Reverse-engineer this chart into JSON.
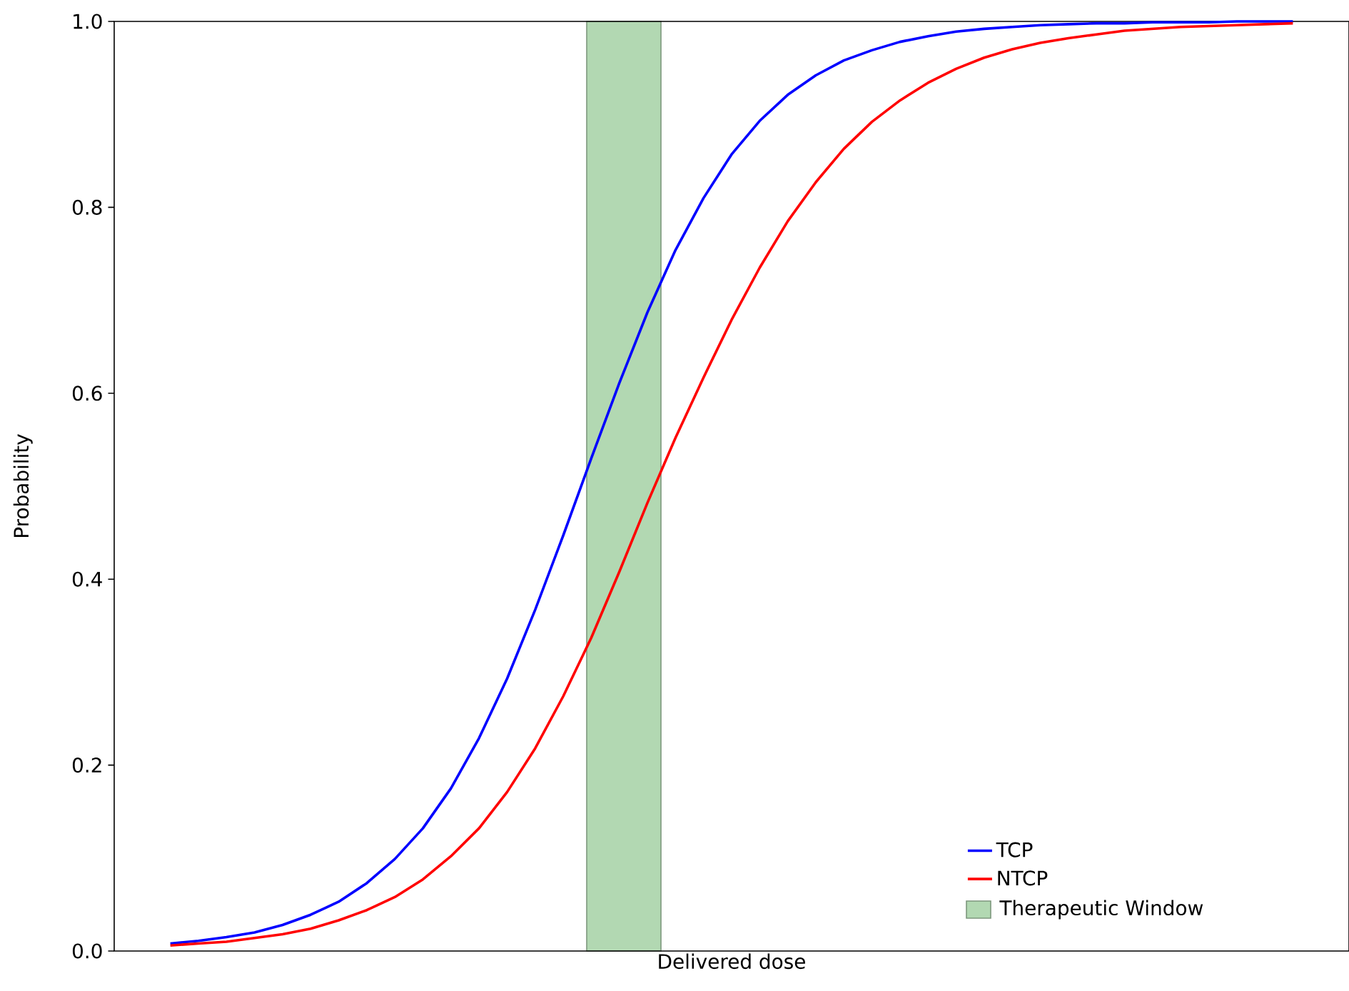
{
  "chart_data": {
    "type": "line",
    "xlabel": "Delivered dose",
    "ylabel": "Probability",
    "categories": [
      null,
      null,
      null,
      null,
      null,
      null,
      null,
      null,
      null,
      null,
      null,
      null,
      null,
      null,
      null,
      null,
      null,
      null,
      null,
      null,
      null,
      null,
      null,
      null,
      null,
      null,
      null,
      null,
      null,
      null,
      null,
      null,
      null,
      null,
      null,
      null,
      null,
      null,
      null,
      null,
      null
    ],
    "ylim": [
      0,
      1
    ],
    "yticks": [
      {
        "value": 0,
        "label": "0.0"
      },
      {
        "value": 0.2,
        "label": "0.2"
      },
      {
        "value": 0.4,
        "label": "0.4"
      },
      {
        "value": 0.6,
        "label": "0.6"
      },
      {
        "value": 0.8,
        "label": "0.8"
      },
      {
        "value": 1,
        "label": "1.0"
      }
    ],
    "legend": "bottom right",
    "marker": "none",
    "line_style": "solid",
    "series": [
      {
        "name": "TCP",
        "color": "#0000ff",
        "values": [
          0.008,
          0.011,
          0.015,
          0.02,
          0.028,
          0.039,
          0.053,
          0.073,
          0.099,
          0.132,
          0.175,
          0.229,
          0.293,
          0.367,
          0.447,
          0.53,
          0.611,
          0.687,
          0.754,
          0.81,
          0.857,
          0.893,
          0.921,
          0.942,
          0.958,
          0.969,
          0.978,
          0.984,
          0.989,
          0.992,
          0.994,
          0.996,
          0.997,
          0.998,
          0.998,
          0.999,
          0.999,
          0.999,
          1.0,
          1.0,
          1.0
        ]
      },
      {
        "name": "NTCP",
        "color": "#ff0000",
        "values": [
          0.006,
          0.008,
          0.01,
          0.014,
          0.018,
          0.024,
          0.033,
          0.044,
          0.058,
          0.077,
          0.102,
          0.132,
          0.171,
          0.218,
          0.274,
          0.337,
          0.408,
          0.482,
          0.552,
          0.617,
          0.679,
          0.735,
          0.785,
          0.827,
          0.863,
          0.892,
          0.915,
          0.934,
          0.949,
          0.961,
          0.97,
          0.977,
          0.982,
          0.986,
          0.99,
          0.992,
          0.994,
          0.995,
          0.996,
          0.997,
          0.998
        ]
      }
    ],
    "annotations": [
      "Therapeutic Window"
    ]
  }
}
